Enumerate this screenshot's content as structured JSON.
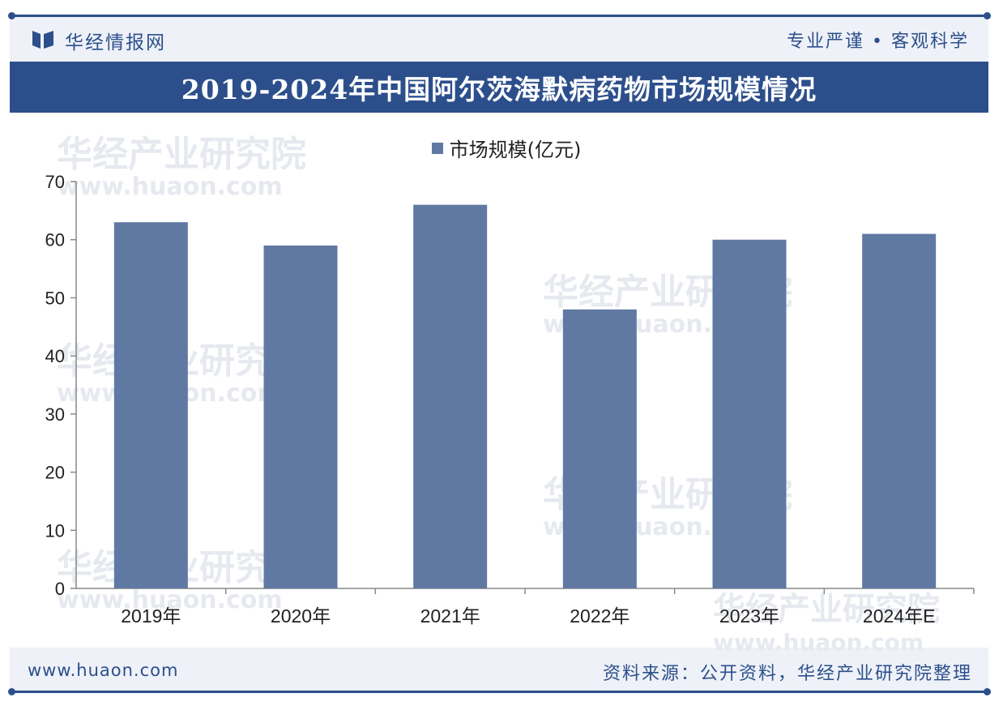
{
  "header": {
    "brand": "华经情报网",
    "slogan": "专业严谨 • 客观科学"
  },
  "watermark": {
    "name": "华经产业研究院",
    "url": "www.huaon.com"
  },
  "colors": {
    "brand": "#2c4f8c",
    "bar": "#5f79a3",
    "background": "#eef1f7"
  },
  "chart_data": {
    "type": "bar",
    "title": "2019-2024年中国阿尔茨海默病药物市场规模情况",
    "categories": [
      "2019年",
      "2020年",
      "2021年",
      "2022年",
      "2023年",
      "2024年E"
    ],
    "series": [
      {
        "name": "市场规模(亿元)",
        "values": [
          63,
          59,
          66,
          48,
          60,
          61
        ]
      }
    ],
    "yticks": [
      0,
      10,
      20,
      30,
      40,
      50,
      60,
      70
    ],
    "ylim": [
      0,
      70
    ],
    "grid": false,
    "legend": "top-center"
  },
  "footer": {
    "website": "www.huaon.com",
    "source": "资料来源：公开资料，华经产业研究院整理"
  }
}
